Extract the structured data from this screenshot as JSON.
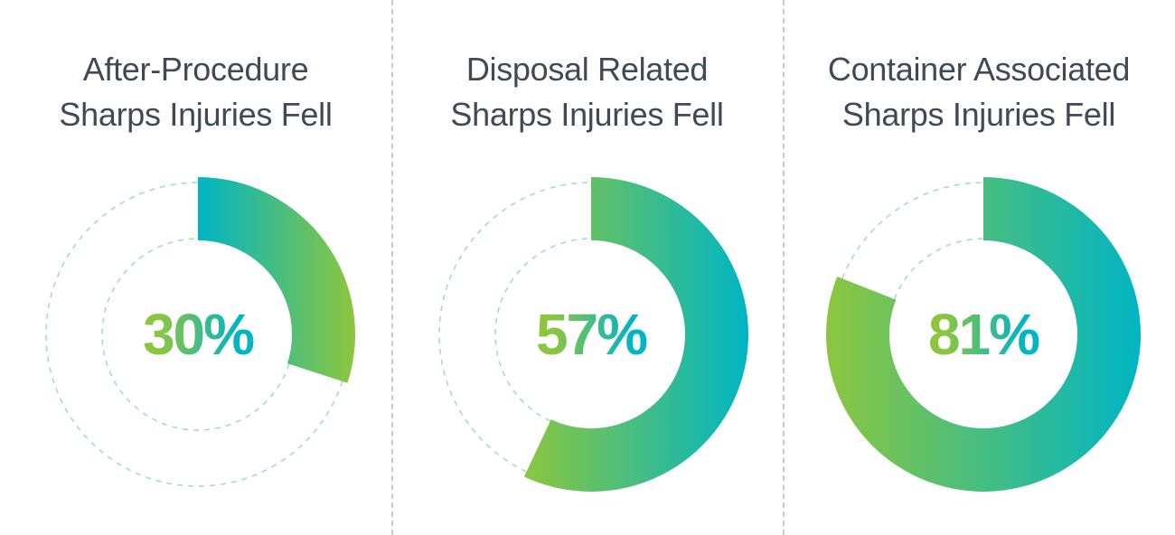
{
  "colors": {
    "gradient_start": "#8cc63f",
    "gradient_end": "#00b5c4",
    "track_dash": "#9fdcc0",
    "title": "#3f4a55",
    "divider": "#c9c9c9"
  },
  "chart_data": [
    {
      "type": "pie",
      "title_lines": [
        "After-Procedure",
        "Sharps Injuries Fell"
      ],
      "value": 30,
      "label": "30%"
    },
    {
      "type": "pie",
      "title_lines": [
        "Disposal Related",
        "Sharps Injuries Fell"
      ],
      "value": 57,
      "label": "57%"
    },
    {
      "type": "pie",
      "title_lines": [
        "Container Associated",
        "Sharps Injuries Fell"
      ],
      "value": 81,
      "label": "81%"
    }
  ]
}
